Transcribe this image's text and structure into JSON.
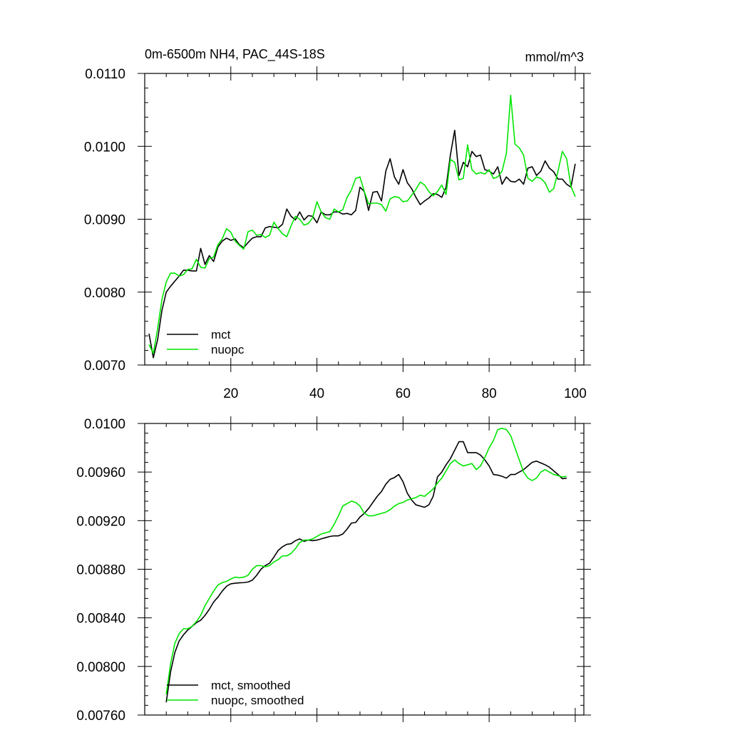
{
  "chart_data": [
    {
      "type": "line",
      "title": "0m-6500m NH4, PAC_44S-18S",
      "units": "mmol/m^3",
      "xlim": [
        0,
        102
      ],
      "ylim": [
        0.007,
        0.011
      ],
      "xticks": [
        20,
        40,
        60,
        80,
        100
      ],
      "yticks": [
        0.007,
        0.008,
        0.009,
        0.01,
        0.011
      ],
      "ytick_labels": [
        "0.0070",
        "0.0080",
        "0.0090",
        "0.0100",
        "0.0110"
      ],
      "xtick_labels": [
        "20",
        "40",
        "60",
        "80",
        "100"
      ],
      "grid": false,
      "legend_placement": "bottom-left",
      "series": [
        {
          "name": "mct",
          "color": "#000000",
          "x": [
            1,
            2,
            3,
            4,
            5,
            6,
            7,
            8,
            9,
            10,
            11,
            12,
            13,
            14,
            15,
            16,
            17,
            18,
            19,
            20,
            21,
            22,
            23,
            24,
            25,
            26,
            27,
            28,
            29,
            30,
            31,
            32,
            33,
            34,
            35,
            36,
            37,
            38,
            39,
            40,
            41,
            42,
            43,
            44,
            45,
            46,
            47,
            48,
            49,
            50,
            51,
            52,
            53,
            54,
            55,
            56,
            57,
            58,
            59,
            60,
            61,
            62,
            63,
            64,
            65,
            66,
            67,
            68,
            69,
            70,
            71,
            72,
            73,
            74,
            75,
            76,
            77,
            78,
            79,
            80,
            81,
            82,
            83,
            84,
            85,
            86,
            87,
            88,
            89,
            90,
            91,
            92,
            93,
            94,
            95,
            96,
            97,
            98,
            99,
            100
          ],
          "values": [
            0.00743,
            0.0071,
            0.00735,
            0.00775,
            0.008,
            0.00808,
            0.00815,
            0.00822,
            0.0083,
            0.0083,
            0.00829,
            0.00829,
            0.0086,
            0.00838,
            0.0085,
            0.00842,
            0.00862,
            0.0087,
            0.00874,
            0.00871,
            0.00873,
            0.00865,
            0.00861,
            0.00868,
            0.00874,
            0.00876,
            0.00876,
            0.00888,
            0.0089,
            0.00889,
            0.00888,
            0.00893,
            0.00914,
            0.00904,
            0.00899,
            0.0091,
            0.00899,
            0.00905,
            0.00904,
            0.00895,
            0.0091,
            0.00906,
            0.00906,
            0.0091,
            0.0091,
            0.00907,
            0.00908,
            0.00906,
            0.00912,
            0.00944,
            0.00938,
            0.00912,
            0.00937,
            0.00938,
            0.00925,
            0.00966,
            0.00983,
            0.00958,
            0.00948,
            0.00968,
            0.0095,
            0.00942,
            0.0093,
            0.0092,
            0.00925,
            0.00929,
            0.00935,
            0.00934,
            0.0093,
            0.00944,
            0.00988,
            0.01022,
            0.0096,
            0.00978,
            0.00972,
            0.00993,
            0.00986,
            0.00988,
            0.00968,
            0.00966,
            0.00962,
            0.00972,
            0.00948,
            0.00958,
            0.00952,
            0.00951,
            0.00955,
            0.00948,
            0.0097,
            0.00972,
            0.0096,
            0.00966,
            0.0098,
            0.0097,
            0.00965,
            0.00955,
            0.00955,
            0.00948,
            0.00944,
            0.00976
          ]
        },
        {
          "name": "nuopc",
          "color": "#00e600",
          "x": [
            1,
            2,
            3,
            4,
            5,
            6,
            7,
            8,
            9,
            10,
            11,
            12,
            13,
            14,
            15,
            16,
            17,
            18,
            19,
            20,
            21,
            22,
            23,
            24,
            25,
            26,
            27,
            28,
            29,
            30,
            31,
            32,
            33,
            34,
            35,
            36,
            37,
            38,
            39,
            40,
            41,
            42,
            43,
            44,
            45,
            46,
            47,
            48,
            49,
            50,
            51,
            52,
            53,
            54,
            55,
            56,
            57,
            58,
            59,
            60,
            61,
            62,
            63,
            64,
            65,
            66,
            67,
            68,
            69,
            70,
            71,
            72,
            73,
            74,
            75,
            76,
            77,
            78,
            79,
            80,
            81,
            82,
            83,
            84,
            85,
            86,
            87,
            88,
            89,
            90,
            91,
            92,
            93,
            94,
            95,
            96,
            97,
            98,
            99,
            100
          ],
          "values": [
            0.00728,
            0.00716,
            0.0075,
            0.0079,
            0.00814,
            0.00826,
            0.00826,
            0.00822,
            0.00824,
            0.00831,
            0.00832,
            0.00845,
            0.00834,
            0.00833,
            0.00846,
            0.00848,
            0.00865,
            0.00873,
            0.00887,
            0.00882,
            0.0087,
            0.00864,
            0.00859,
            0.00883,
            0.00885,
            0.00878,
            0.00879,
            0.00875,
            0.00878,
            0.00896,
            0.00887,
            0.0088,
            0.00876,
            0.00891,
            0.00904,
            0.009,
            0.00892,
            0.00894,
            0.00902,
            0.00924,
            0.0091,
            0.00902,
            0.009,
            0.00914,
            0.0091,
            0.00913,
            0.0093,
            0.0094,
            0.00956,
            0.00958,
            0.00938,
            0.00921,
            0.00922,
            0.00922,
            0.0092,
            0.00911,
            0.00928,
            0.00931,
            0.0093,
            0.00924,
            0.00925,
            0.00933,
            0.00941,
            0.00951,
            0.00947,
            0.00938,
            0.00932,
            0.00938,
            0.00947,
            0.00934,
            0.00982,
            0.00978,
            0.00954,
            0.00956,
            0.01002,
            0.00968,
            0.00962,
            0.00964,
            0.00962,
            0.00968,
            0.00956,
            0.00958,
            0.00966,
            0.0099,
            0.0107,
            0.01003,
            0.00998,
            0.00988,
            0.00956,
            0.00952,
            0.00958,
            0.00956,
            0.0095,
            0.00937,
            0.00942,
            0.00966,
            0.00993,
            0.00983,
            0.00945,
            0.00931
          ]
        }
      ]
    },
    {
      "type": "line",
      "title": "",
      "xlim": [
        0,
        102
      ],
      "ylim": [
        0.0076,
        0.01
      ],
      "xticks": [
        20,
        40,
        60,
        80,
        100
      ],
      "yticks": [
        0.0076,
        0.008,
        0.0084,
        0.0088,
        0.0092,
        0.0096,
        0.01
      ],
      "ytick_labels": [
        "0.00760",
        "0.00800",
        "0.00840",
        "0.00880",
        "0.00920",
        "0.00960",
        "0.0100"
      ],
      "grid": false,
      "legend_placement": "bottom-left",
      "series": [
        {
          "name": "mct, smoothed",
          "color": "#000000",
          "x": [
            5,
            6,
            7,
            8,
            9,
            10,
            11,
            12,
            13,
            14,
            15,
            16,
            17,
            18,
            19,
            20,
            21,
            22,
            23,
            24,
            25,
            26,
            27,
            28,
            29,
            30,
            31,
            32,
            33,
            34,
            35,
            36,
            37,
            38,
            39,
            40,
            41,
            42,
            43,
            44,
            45,
            46,
            47,
            48,
            49,
            50,
            51,
            52,
            53,
            54,
            55,
            56,
            57,
            58,
            59,
            60,
            61,
            62,
            63,
            64,
            65,
            66,
            67,
            68,
            69,
            70,
            71,
            72,
            73,
            74,
            75,
            76,
            77,
            78,
            79,
            80,
            81,
            82,
            83,
            84,
            85,
            86,
            87,
            88,
            89,
            90,
            91,
            92,
            93,
            94,
            95,
            96,
            97,
            98
          ],
          "values": [
            0.007705,
            0.007955,
            0.008115,
            0.00821,
            0.00826,
            0.0083,
            0.00833,
            0.00836,
            0.00838,
            0.00842,
            0.00847,
            0.00853,
            0.00857,
            0.00862,
            0.00866,
            0.00868,
            0.008685,
            0.008688,
            0.00869,
            0.008695,
            0.00871,
            0.00875,
            0.0088,
            0.00883,
            0.00885,
            0.0089,
            0.008955,
            0.008985,
            0.009005,
            0.00901,
            0.009035,
            0.00905,
            0.00903,
            0.00904,
            0.009035,
            0.00904,
            0.00905,
            0.00906,
            0.00907,
            0.009075,
            0.009075,
            0.00909,
            0.00913,
            0.00918,
            0.009185,
            0.00923,
            0.00926,
            0.0093,
            0.00935,
            0.0094,
            0.00944,
            0.0095,
            0.00954,
            0.009555,
            0.00958,
            0.00952,
            0.009425,
            0.00937,
            0.00933,
            0.00932,
            0.00931,
            0.00933,
            0.0094,
            0.00956,
            0.0096,
            0.00966,
            0.00971,
            0.00978,
            0.00985,
            0.00985,
            0.00976,
            0.00976,
            0.00976,
            0.00974,
            0.0097,
            0.00965,
            0.00958,
            0.009575,
            0.009565,
            0.00955,
            0.00958,
            0.00958,
            0.0096,
            0.00962,
            0.00965,
            0.00968,
            0.00969,
            0.009675,
            0.00966,
            0.00964,
            0.00961,
            0.00958,
            0.009545,
            0.00955
          ]
        },
        {
          "name": "nuopc, smoothed",
          "color": "#00e600",
          "x": [
            5,
            6,
            7,
            8,
            9,
            10,
            11,
            12,
            13,
            14,
            15,
            16,
            17,
            18,
            19,
            20,
            21,
            22,
            23,
            24,
            25,
            26,
            27,
            28,
            29,
            30,
            31,
            32,
            33,
            34,
            35,
            36,
            37,
            38,
            39,
            40,
            41,
            42,
            43,
            44,
            45,
            46,
            47,
            48,
            49,
            50,
            51,
            52,
            53,
            54,
            55,
            56,
            57,
            58,
            59,
            60,
            61,
            62,
            63,
            64,
            65,
            66,
            67,
            68,
            69,
            70,
            71,
            72,
            73,
            74,
            75,
            76,
            77,
            78,
            79,
            80,
            81,
            82,
            83,
            84,
            85,
            86,
            87,
            88,
            89,
            90,
            91,
            92,
            93,
            94,
            95,
            96,
            97,
            98
          ],
          "values": [
            0.00777,
            0.00802,
            0.00819,
            0.00827,
            0.00831,
            0.00831,
            0.00833,
            0.00837,
            0.00842,
            0.0085,
            0.00856,
            0.00862,
            0.00867,
            0.00869,
            0.0087,
            0.00872,
            0.008735,
            0.00873,
            0.008735,
            0.00875,
            0.0088,
            0.00883,
            0.00883,
            0.00882,
            0.00883,
            0.00886,
            0.00888,
            0.00891,
            0.00891,
            0.00893,
            0.00897,
            0.00902,
            0.00904,
            0.00904,
            0.00905,
            0.00907,
            0.00909,
            0.0091,
            0.00911,
            0.00917,
            0.00924,
            0.00932,
            0.00934,
            0.00936,
            0.00935,
            0.00932,
            0.00926,
            0.00924,
            0.00924,
            0.00925,
            0.00926,
            0.00927,
            0.00929,
            0.00932,
            0.00934,
            0.00935,
            0.00937,
            0.00938,
            0.00939,
            0.00941,
            0.0094,
            0.00943,
            0.00946,
            0.00951,
            0.00955,
            0.00961,
            0.00967,
            0.0097,
            0.00967,
            0.00965,
            0.00966,
            0.00967,
            0.00962,
            0.00965,
            0.00972,
            0.0098,
            0.00986,
            0.00995,
            0.00996,
            0.00995,
            0.0099,
            0.0098,
            0.0097,
            0.0096,
            0.00955,
            0.00953,
            0.00955,
            0.0096,
            0.00962,
            0.0096,
            0.00958,
            0.00957,
            0.00956,
            0.009565
          ]
        }
      ]
    }
  ]
}
